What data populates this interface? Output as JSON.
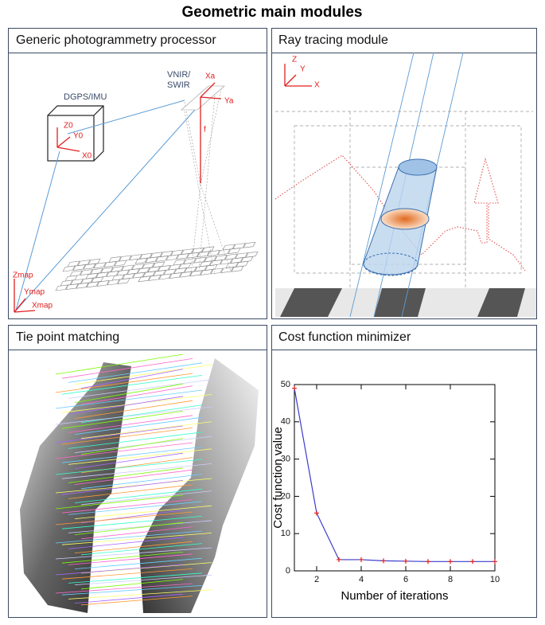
{
  "title": "Geometric main modules",
  "panels": [
    {
      "title": "Generic photogrammetry processor",
      "labels": [
        "DGPS/IMU",
        "VNIR/",
        "SWIR",
        "Xa",
        "Ya",
        "f",
        "Z0",
        "Y0",
        "X0",
        "Zmap",
        "Ymap",
        "Xmap"
      ]
    },
    {
      "title": "Ray tracing module",
      "labels": [
        "Z",
        "Y",
        "X"
      ]
    },
    {
      "title": "Tie point matching"
    },
    {
      "title": "Cost function minimizer"
    }
  ],
  "chart_data": {
    "type": "line",
    "xlabel": "Number of iterations",
    "ylabel": "Cost function value",
    "x": [
      1,
      2,
      3,
      4,
      5,
      6,
      7,
      8,
      9,
      10
    ],
    "series": [
      {
        "color": "#3a3acd",
        "marker_color": "#e02020",
        "values": [
          49,
          15.5,
          3,
          3,
          2.7,
          2.6,
          2.5,
          2.5,
          2.5,
          2.5
        ]
      }
    ],
    "xlim": [
      1,
      10
    ],
    "xticks": [
      2,
      4,
      6,
      8,
      10
    ],
    "ylim": [
      0,
      50
    ],
    "yticks": [
      0,
      10,
      20,
      30,
      40,
      50
    ]
  }
}
